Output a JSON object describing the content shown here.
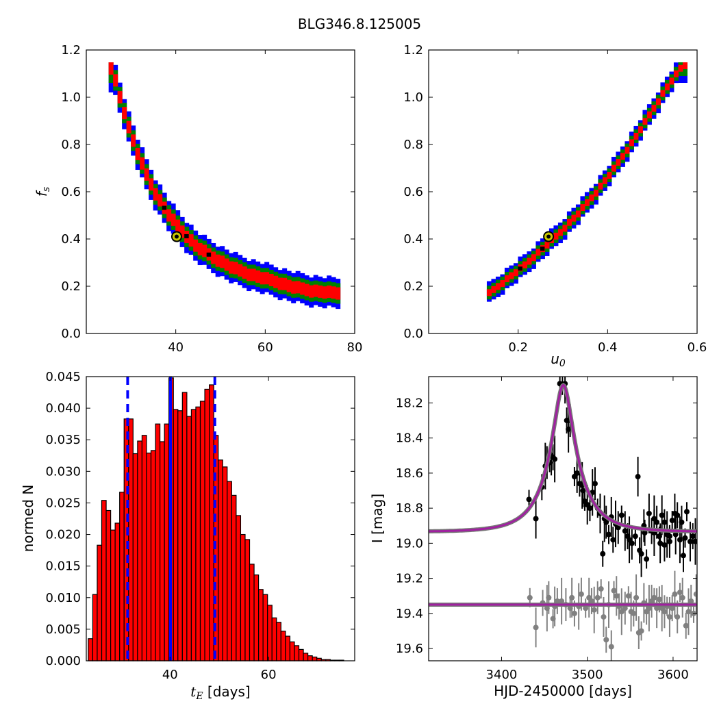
{
  "figure_title": "BLG346.8.125005",
  "chart_data": [
    {
      "type": "scatter",
      "panel": "top-left",
      "xlabel": "",
      "ylabel": "f_s",
      "xlim": [
        20,
        80
      ],
      "ylim": [
        0.0,
        1.2
      ],
      "xticks": [
        40,
        60,
        80
      ],
      "yticks": [
        0.0,
        0.2,
        0.4,
        0.6,
        0.8,
        1.0,
        1.2
      ],
      "colors": {
        "outer": "#0000ff",
        "middle": "#008000",
        "inner": "#ff0000",
        "best": "#000000"
      },
      "best_fit_marker": {
        "x": 40.2,
        "y": 0.41,
        "color": "#c8c800"
      },
      "band": {
        "x": [
          25,
          27,
          29,
          31,
          33,
          35,
          38,
          41,
          44,
          48,
          52,
          56,
          60,
          65,
          70,
          76
        ],
        "y": [
          1.14,
          1.0,
          0.87,
          0.76,
          0.67,
          0.59,
          0.5,
          0.43,
          0.37,
          0.32,
          0.28,
          0.25,
          0.23,
          0.2,
          0.18,
          0.17
        ]
      }
    },
    {
      "type": "scatter",
      "panel": "top-right",
      "xlabel": "u_0",
      "ylabel": "",
      "xlim": [
        0.0,
        0.6
      ],
      "ylim": [
        0.0,
        1.2
      ],
      "xticks": [
        0.2,
        0.4,
        0.6
      ],
      "yticks": [
        0.0,
        0.2,
        0.4,
        0.6,
        0.8,
        1.0,
        1.2
      ],
      "best_fit_marker": {
        "x": 0.268,
        "y": 0.41,
        "color": "#c8c800"
      },
      "band": {
        "x": [
          0.13,
          0.17,
          0.21,
          0.25,
          0.29,
          0.33,
          0.37,
          0.41,
          0.45,
          0.49,
          0.53,
          0.565
        ],
        "y": [
          0.17,
          0.23,
          0.29,
          0.36,
          0.43,
          0.51,
          0.6,
          0.7,
          0.81,
          0.93,
          1.05,
          1.14
        ]
      }
    },
    {
      "type": "bar",
      "panel": "bottom-left",
      "xlabel": "t_E [days]",
      "ylabel": "normed N",
      "xlim": [
        23,
        77.5
      ],
      "ylim": [
        0.0,
        0.045
      ],
      "xticks": [
        40,
        60
      ],
      "yticks": [
        0.0,
        0.005,
        0.01,
        0.015,
        0.02,
        0.025,
        0.03,
        0.035,
        0.04,
        0.045
      ],
      "bin_start": 23.4,
      "bin_width": 0.91,
      "values": [
        0.0035,
        0.0105,
        0.0183,
        0.0254,
        0.0238,
        0.0207,
        0.0218,
        0.0267,
        0.0383,
        0.0383,
        0.0328,
        0.0348,
        0.0357,
        0.0329,
        0.0333,
        0.0375,
        0.0347,
        0.0375,
        0.0448,
        0.0398,
        0.0396,
        0.0425,
        0.0387,
        0.0398,
        0.0402,
        0.0411,
        0.043,
        0.0437,
        0.0357,
        0.0318,
        0.0307,
        0.0284,
        0.0262,
        0.023,
        0.02,
        0.0192,
        0.0153,
        0.0136,
        0.0113,
        0.0105,
        0.0088,
        0.0068,
        0.0061,
        0.0047,
        0.0039,
        0.003,
        0.0024,
        0.0018,
        0.0012,
        0.0008,
        0.0006,
        0.0004,
        0.0002,
        0.0002,
        0.0001,
        0.0001,
        0.0001,
        0.0,
        0.0,
        0.0001
      ],
      "bar_color": "#ff0000",
      "vlines": [
        {
          "x": 31.4,
          "style": "dashed",
          "color": "#0000ff"
        },
        {
          "x": 40.1,
          "style": "solid",
          "color": "#0000ff"
        },
        {
          "x": 49.1,
          "style": "dashed",
          "color": "#0000ff"
        }
      ]
    },
    {
      "type": "scatter",
      "panel": "bottom-right",
      "xlabel": "HJD-2450000 [days]",
      "ylabel": "I [mag]",
      "xlim": [
        3315,
        3628
      ],
      "ylim": [
        19.67,
        18.05
      ],
      "xticks": [
        3400,
        3500,
        3600
      ],
      "yticks": [
        18.2,
        18.4,
        18.6,
        18.8,
        19.0,
        19.2,
        19.4,
        19.6
      ],
      "model": {
        "t0": 3472,
        "tE": 40.2,
        "u0": 0.268,
        "baseline": 18.935,
        "blend_fraction": 0.41,
        "color": "#a020a0"
      },
      "model_lower": {
        "level": 19.35,
        "color": "#a020a0"
      },
      "series": [
        {
          "name": "",
          "color": "#000000",
          "x": [
            3432,
            3440,
            3447,
            3451,
            3453,
            3456,
            3458,
            3460,
            3462,
            3468,
            3471,
            3474,
            3476,
            3478,
            3480,
            3485,
            3488,
            3491,
            3494,
            3495,
            3497,
            3500,
            3503,
            3506,
            3509,
            3512,
            3515,
            3518,
            3520,
            3522,
            3525,
            3528,
            3530,
            3533,
            3536,
            3540,
            3544,
            3547,
            3549,
            3552,
            3556,
            3559,
            3561,
            3563,
            3566,
            3569,
            3572,
            3575,
            3578,
            3581,
            3584,
            3587,
            3590,
            3593,
            3596,
            3599,
            3602,
            3605,
            3608,
            3612,
            3616,
            3620,
            3623,
            3626,
            3590,
            3596,
            3603,
            3567,
            3578,
            3610,
            3614,
            3585
          ],
          "y": [
            18.75,
            18.86,
            18.68,
            18.56,
            18.54,
            18.54,
            18.5,
            18.51,
            18.52,
            18.09,
            18.1,
            18.09,
            18.3,
            18.35,
            18.3,
            18.62,
            18.6,
            18.66,
            18.67,
            18.7,
            18.76,
            18.78,
            18.8,
            18.71,
            18.66,
            18.8,
            18.83,
            19.06,
            18.86,
            18.88,
            18.95,
            18.85,
            18.98,
            18.89,
            18.91,
            18.84,
            18.93,
            18.96,
            18.98,
            19.0,
            18.96,
            18.62,
            19.04,
            19.06,
            18.9,
            19.09,
            18.83,
            18.93,
            18.94,
            18.88,
            18.96,
            18.84,
            18.88,
            18.95,
            18.99,
            18.87,
            18.83,
            18.84,
            18.98,
            19.07,
            18.82,
            18.99,
            18.96,
            18.99,
            19.01,
            18.96,
            18.95,
            18.94,
            18.86,
            18.88,
            18.97,
            19.0
          ]
        },
        {
          "name": "",
          "color": "#808080",
          "x": [
            3433,
            3440,
            3448,
            3453,
            3455,
            3460,
            3462,
            3465,
            3470,
            3475,
            3480,
            3482,
            3485,
            3490,
            3493,
            3498,
            3502,
            3505,
            3508,
            3512,
            3516,
            3519,
            3522,
            3525,
            3528,
            3531,
            3534,
            3537,
            3540,
            3544,
            3548,
            3551,
            3554,
            3557,
            3560,
            3563,
            3566,
            3569,
            3572,
            3575,
            3578,
            3581,
            3584,
            3587,
            3590,
            3593,
            3596,
            3599,
            3602,
            3605,
            3608,
            3611,
            3615,
            3618,
            3621,
            3624,
            3627
          ],
          "y": [
            19.31,
            19.48,
            19.34,
            19.37,
            19.31,
            19.43,
            19.36,
            19.33,
            19.33,
            19.35,
            19.37,
            19.31,
            19.4,
            19.36,
            19.29,
            19.37,
            19.31,
            19.33,
            19.38,
            19.31,
            19.26,
            19.42,
            19.55,
            19.35,
            19.59,
            19.27,
            19.3,
            19.36,
            19.39,
            19.37,
            19.3,
            19.39,
            19.4,
            19.31,
            19.51,
            19.5,
            19.34,
            19.39,
            19.37,
            19.33,
            19.31,
            19.37,
            19.32,
            19.37,
            19.39,
            19.36,
            19.42,
            19.37,
            19.29,
            19.42,
            19.28,
            19.31,
            19.47,
            19.39,
            19.33,
            19.4,
            19.29
          ]
        }
      ]
    }
  ]
}
